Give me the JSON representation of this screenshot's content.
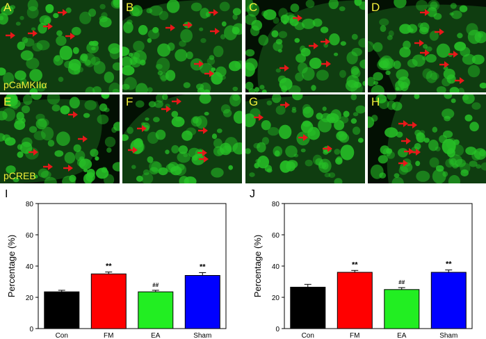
{
  "panels": [
    {
      "letter": "A",
      "stain": "pCaMKIIα"
    },
    {
      "letter": "B",
      "stain": ""
    },
    {
      "letter": "C",
      "stain": ""
    },
    {
      "letter": "D",
      "stain": ""
    },
    {
      "letter": "E",
      "stain": "pCREB"
    },
    {
      "letter": "F",
      "stain": ""
    },
    {
      "letter": "G",
      "stain": ""
    },
    {
      "letter": "H",
      "stain": ""
    }
  ],
  "colors": {
    "fluor": "#27c227",
    "arrow": "#e8181a",
    "label": "#f2ef3a"
  },
  "chart_data": [
    {
      "panel": "I",
      "type": "bar",
      "categories": [
        "Con",
        "FM",
        "EA",
        "Sham"
      ],
      "values": [
        23.5,
        35,
        23.5,
        34
      ],
      "errors": [
        1,
        1.2,
        1,
        1.8
      ],
      "annotations": [
        "",
        "**",
        "##",
        "**"
      ],
      "colors": [
        "#000000",
        "#ff0000",
        "#22ee22",
        "#0000ff"
      ],
      "ylabel": "Percentage (%)",
      "xlabel": "",
      "ylim": [
        0,
        80
      ],
      "yticks": [
        0,
        20,
        40,
        60,
        80
      ],
      "grid": false
    },
    {
      "panel": "J",
      "type": "bar",
      "categories": [
        "Con",
        "FM",
        "EA",
        "Sham"
      ],
      "values": [
        26.5,
        36,
        25,
        36
      ],
      "errors": [
        1.8,
        1.2,
        1.2,
        1.5
      ],
      "annotations": [
        "",
        "**",
        "##",
        "**"
      ],
      "colors": [
        "#000000",
        "#ff0000",
        "#22ee22",
        "#0000ff"
      ],
      "ylabel": "Percentage (%)",
      "xlabel": "",
      "ylim": [
        0,
        80
      ],
      "yticks": [
        0,
        20,
        40,
        60,
        80
      ],
      "grid": false
    }
  ]
}
